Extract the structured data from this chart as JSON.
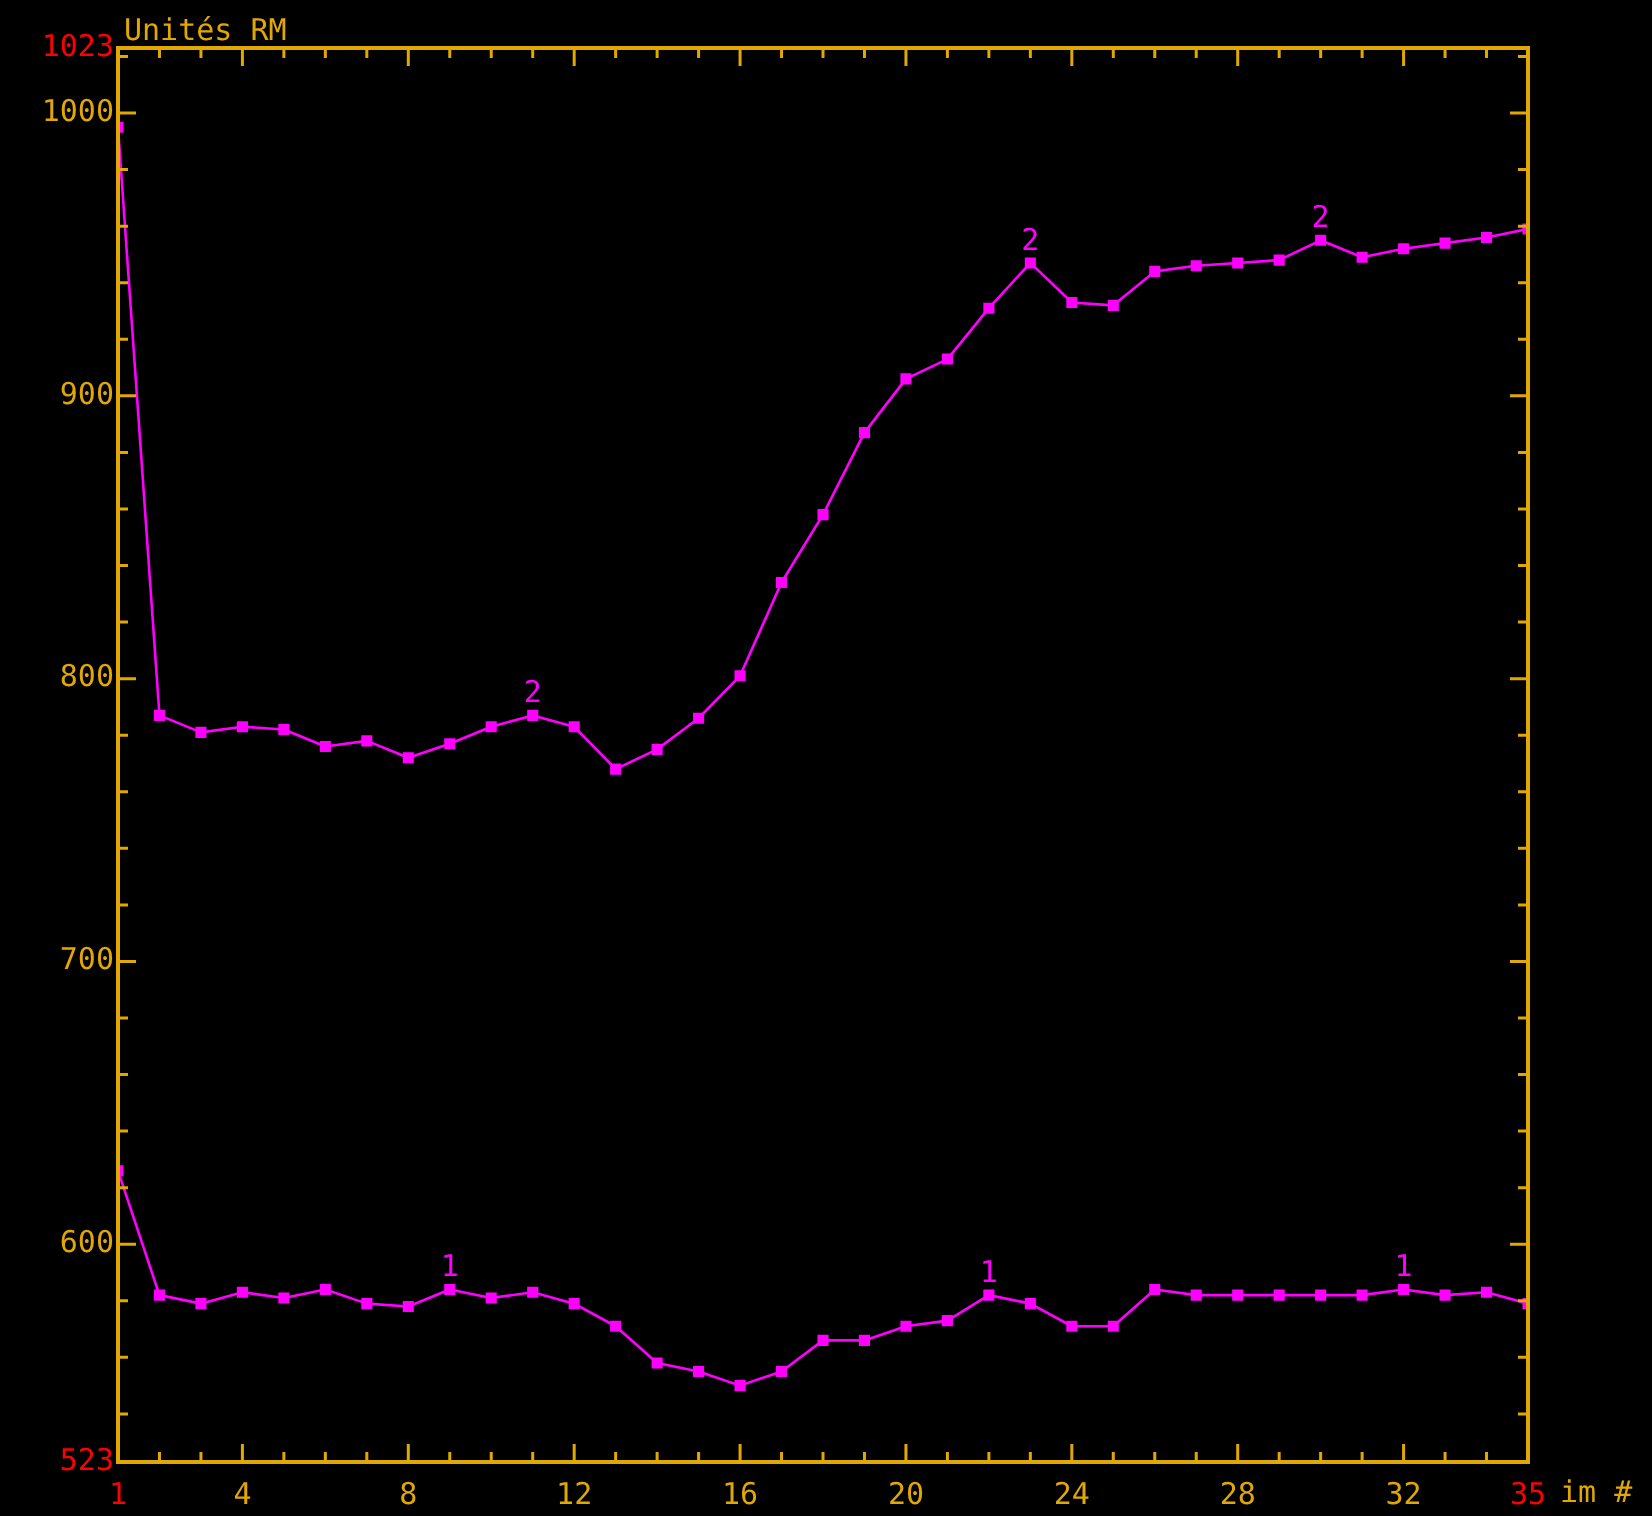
{
  "chart_data": {
    "type": "line",
    "xlabel": "im #",
    "ylabel": "Unités RM",
    "marker": "square",
    "line_style": "solid",
    "grid": false,
    "legend": false,
    "x": [
      1,
      2,
      3,
      4,
      5,
      6,
      7,
      8,
      9,
      10,
      11,
      12,
      13,
      14,
      15,
      16,
      17,
      18,
      19,
      20,
      21,
      22,
      23,
      24,
      25,
      26,
      27,
      28,
      29,
      30,
      31,
      32,
      33,
      34,
      35
    ],
    "series": [
      {
        "color": "#ff00ff",
        "values": [
          995,
          787,
          781,
          783,
          782,
          776,
          778,
          772,
          777,
          783,
          787,
          783,
          768,
          775,
          786,
          801,
          834,
          858,
          887,
          906,
          913,
          931,
          947,
          933,
          932,
          944,
          946,
          947,
          948,
          955,
          949,
          952,
          954,
          956,
          959
        ]
      },
      {
        "color": "#ff00ff",
        "values": [
          626,
          582,
          579,
          583,
          581,
          584,
          579,
          578,
          584,
          581,
          583,
          579,
          571,
          558,
          555,
          550,
          555,
          566,
          566,
          571,
          573,
          582,
          579,
          571,
          571,
          584,
          582,
          582,
          582,
          582,
          582,
          584,
          582,
          583,
          579
        ]
      }
    ],
    "xlim": [
      1,
      35
    ],
    "ylim": [
      523,
      1023
    ],
    "xticks": [
      1,
      {
        "value": 2,
        "label": null
      },
      {
        "value": 3,
        "label": null
      },
      4,
      {
        "value": 5,
        "label": null
      },
      {
        "value": 6,
        "label": null
      },
      {
        "value": 7,
        "label": null
      },
      8,
      {
        "value": 9,
        "label": null
      },
      {
        "value": 10,
        "label": null
      },
      {
        "value": 11,
        "label": null
      },
      12,
      {
        "value": 13,
        "label": null
      },
      {
        "value": 14,
        "label": null
      },
      {
        "value": 15,
        "label": null
      },
      16,
      {
        "value": 17,
        "label": null
      },
      {
        "value": 18,
        "label": null
      },
      {
        "value": 19,
        "label": null
      },
      20,
      {
        "value": 21,
        "label": null
      },
      {
        "value": 22,
        "label": null
      },
      {
        "value": 23,
        "label": null
      },
      24,
      {
        "value": 25,
        "label": null
      },
      {
        "value": 26,
        "label": null
      },
      {
        "value": 27,
        "label": null
      },
      28,
      {
        "value": 29,
        "label": null
      },
      {
        "value": 30,
        "label": null
      },
      {
        "value": 31,
        "label": null
      },
      32,
      {
        "value": 33,
        "label": null
      },
      {
        "value": 34,
        "label": null
      },
      35
    ],
    "yticks": [
      523,
      {
        "value": 540,
        "label": null
      },
      {
        "value": 560,
        "label": null
      },
      {
        "value": 580,
        "label": null
      },
      600,
      {
        "value": 620,
        "label": null
      },
      {
        "value": 640,
        "label": null
      },
      {
        "value": 660,
        "label": null
      },
      {
        "value": 680,
        "label": null
      },
      700,
      {
        "value": 720,
        "label": null
      },
      {
        "value": 740,
        "label": null
      },
      {
        "value": 760,
        "label": null
      },
      {
        "value": 780,
        "label": null
      },
      800,
      {
        "value": 820,
        "label": null
      },
      {
        "value": 840,
        "label": null
      },
      {
        "value": 860,
        "label": null
      },
      {
        "value": 880,
        "label": null
      },
      900,
      {
        "value": 920,
        "label": null
      },
      {
        "value": 940,
        "label": null
      },
      {
        "value": 960,
        "label": null
      },
      {
        "value": 980,
        "label": null
      },
      1000,
      {
        "value": 1020,
        "label": null
      },
      1023
    ],
    "annotations": [
      {
        "text": "2",
        "x": 11,
        "y": 787
      },
      {
        "text": "2",
        "x": 23,
        "y": 947
      },
      {
        "text": "2",
        "x": 30,
        "y": 955
      },
      {
        "text": "1",
        "x": 9,
        "y": 584
      },
      {
        "text": "1",
        "x": 22,
        "y": 582
      },
      {
        "text": "1",
        "x": 32,
        "y": 584
      }
    ]
  }
}
